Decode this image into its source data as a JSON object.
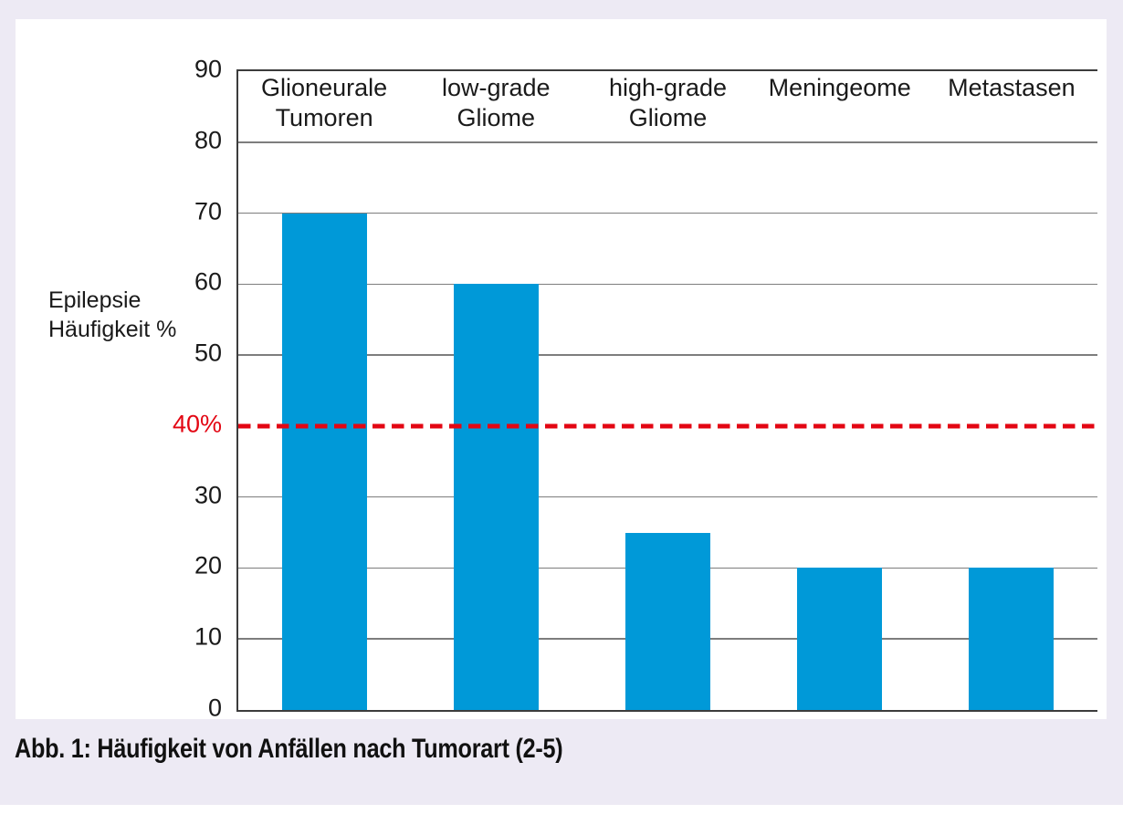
{
  "figure": {
    "caption": "Abb. 1: Häufigkeit von Anfällen nach Tumorart (2-5)"
  },
  "chart_data": {
    "type": "bar",
    "categories": [
      "Glioneurale\nTumoren",
      "low-grade\nGliome",
      "high-grade\nGliome",
      "Meningeome",
      "Metastasen"
    ],
    "values": [
      70,
      60,
      25,
      20,
      20
    ],
    "title": "",
    "xlabel": "",
    "ylabel": "Epilepsie\nHäufigkeit %",
    "ylim": [
      0,
      90
    ],
    "yticks": [
      0,
      10,
      20,
      30,
      40,
      50,
      60,
      70,
      80,
      90
    ],
    "grid": true,
    "legend_position": "none",
    "category_labels_position": "inside-top",
    "reference_line": {
      "value": 40,
      "label": "40%",
      "style": "dashed",
      "color": "#e30613"
    },
    "bar_color": "#0099d8"
  },
  "colors": {
    "background": "#edeaf4",
    "panel": "#ffffff",
    "axis": "#3c3c3c",
    "gridline": "#7d7d7d",
    "bar": "#0099d8",
    "reference": "#e30613",
    "text": "#1a1a1a"
  }
}
